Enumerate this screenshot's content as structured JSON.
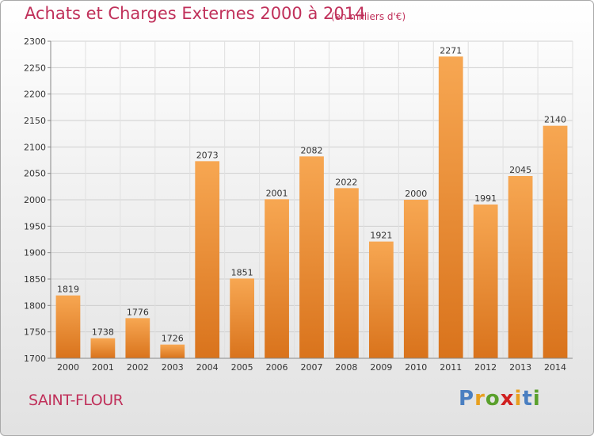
{
  "header": {
    "title": "Achats et Charges Externes 2000 à 2014",
    "unit": "(en milliers d'€)"
  },
  "footer": {
    "commune": "SAINT-FLOUR",
    "logo": "Proxiti"
  },
  "colors": {
    "title": "#c0305a",
    "bar_light": "#f7a752",
    "bar_dark": "#d9731c",
    "logo_letters": [
      "#4a7fc1",
      "#e8a020",
      "#5aa02c",
      "#d02020",
      "#e8a020",
      "#4a7fc1",
      "#5aa02c"
    ]
  },
  "chart_data": {
    "type": "bar",
    "title": "Achats et Charges Externes 2000 à 2014",
    "subtitle": "(en milliers d'€)",
    "categories": [
      "2000",
      "2001",
      "2002",
      "2003",
      "2004",
      "2005",
      "2006",
      "2007",
      "2008",
      "2009",
      "2010",
      "2011",
      "2012",
      "2013",
      "2014"
    ],
    "values": [
      1819,
      1738,
      1776,
      1726,
      2073,
      1851,
      2001,
      2082,
      2022,
      1921,
      2000,
      2271,
      1991,
      2045,
      2140
    ],
    "ylim": [
      1700,
      2300
    ],
    "yticks": [
      1700,
      1750,
      1800,
      1850,
      1900,
      1950,
      2000,
      2050,
      2100,
      2150,
      2200,
      2250,
      2300
    ],
    "grid": true,
    "data_labels": true
  }
}
